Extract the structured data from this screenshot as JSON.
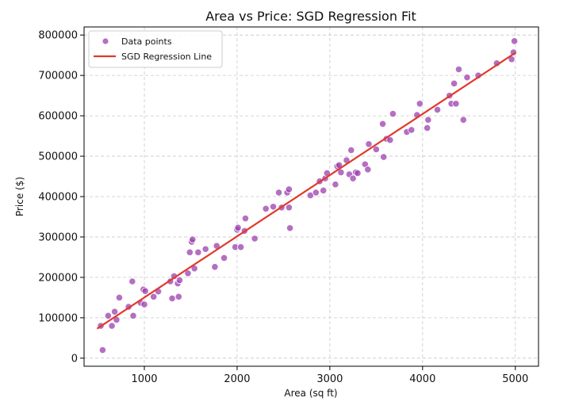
{
  "chart_data": {
    "type": "scatter",
    "title": "Area vs Price: SGD Regression Fit",
    "xlabel": "Area (sq ft)",
    "ylabel": "Price ($)",
    "xlim": [
      350,
      5250
    ],
    "ylim": [
      -20000,
      820000
    ],
    "xticks": [
      1000,
      2000,
      3000,
      4000,
      5000
    ],
    "yticks": [
      0,
      100000,
      200000,
      300000,
      400000,
      500000,
      600000,
      700000,
      800000
    ],
    "grid": true,
    "legend_position": "top-left",
    "colors": {
      "points": "#9b3fae",
      "line": "#e0392b",
      "grid": "#c8c8c8"
    },
    "series": [
      {
        "name": "Data points",
        "type": "scatter",
        "x": [
          530,
          550,
          610,
          650,
          680,
          700,
          730,
          830,
          870,
          880,
          960,
          990,
          1000,
          1010,
          1100,
          1150,
          1280,
          1300,
          1320,
          1360,
          1370,
          1380,
          1470,
          1490,
          1510,
          1520,
          1540,
          1580,
          1660,
          1760,
          1780,
          1860,
          1980,
          2000,
          2010,
          2040,
          2080,
          2090,
          2190,
          2310,
          2390,
          2450,
          2480,
          2540,
          2560,
          2560,
          2570,
          2790,
          2850,
          2890,
          2930,
          2950,
          2970,
          3060,
          3080,
          3100,
          3120,
          3180,
          3210,
          3230,
          3250,
          3280,
          3300,
          3380,
          3410,
          3420,
          3500,
          3570,
          3580,
          3610,
          3650,
          3680,
          3830,
          3880,
          3940,
          3970,
          4050,
          4060,
          4160,
          4290,
          4310,
          4340,
          4360,
          4390,
          4440,
          4480,
          4600,
          4800,
          4960,
          4980,
          4990
        ],
        "y": [
          80000,
          20000,
          105000,
          80000,
          115000,
          95000,
          150000,
          127000,
          190000,
          105000,
          137000,
          170000,
          133000,
          166000,
          152000,
          165000,
          190000,
          148000,
          203000,
          185000,
          152000,
          193000,
          210000,
          262000,
          288000,
          294000,
          222000,
          262000,
          270000,
          226000,
          278000,
          248000,
          275000,
          318000,
          323000,
          275000,
          315000,
          346000,
          296000,
          370000,
          375000,
          410000,
          373000,
          410000,
          418000,
          373000,
          322000,
          403000,
          410000,
          438000,
          415000,
          445000,
          458000,
          430000,
          475000,
          478000,
          460000,
          490000,
          455000,
          515000,
          445000,
          460000,
          458000,
          480000,
          467000,
          530000,
          517000,
          580000,
          498000,
          543000,
          540000,
          605000,
          560000,
          565000,
          602000,
          630000,
          570000,
          590000,
          615000,
          650000,
          630000,
          680000,
          630000,
          715000,
          590000,
          695000,
          700000,
          730000,
          740000,
          757000,
          785000
        ]
      },
      {
        "name": "SGD Regression Line",
        "type": "line",
        "x": [
          490,
          5000
        ],
        "y": [
          73000,
          756000
        ]
      }
    ]
  }
}
